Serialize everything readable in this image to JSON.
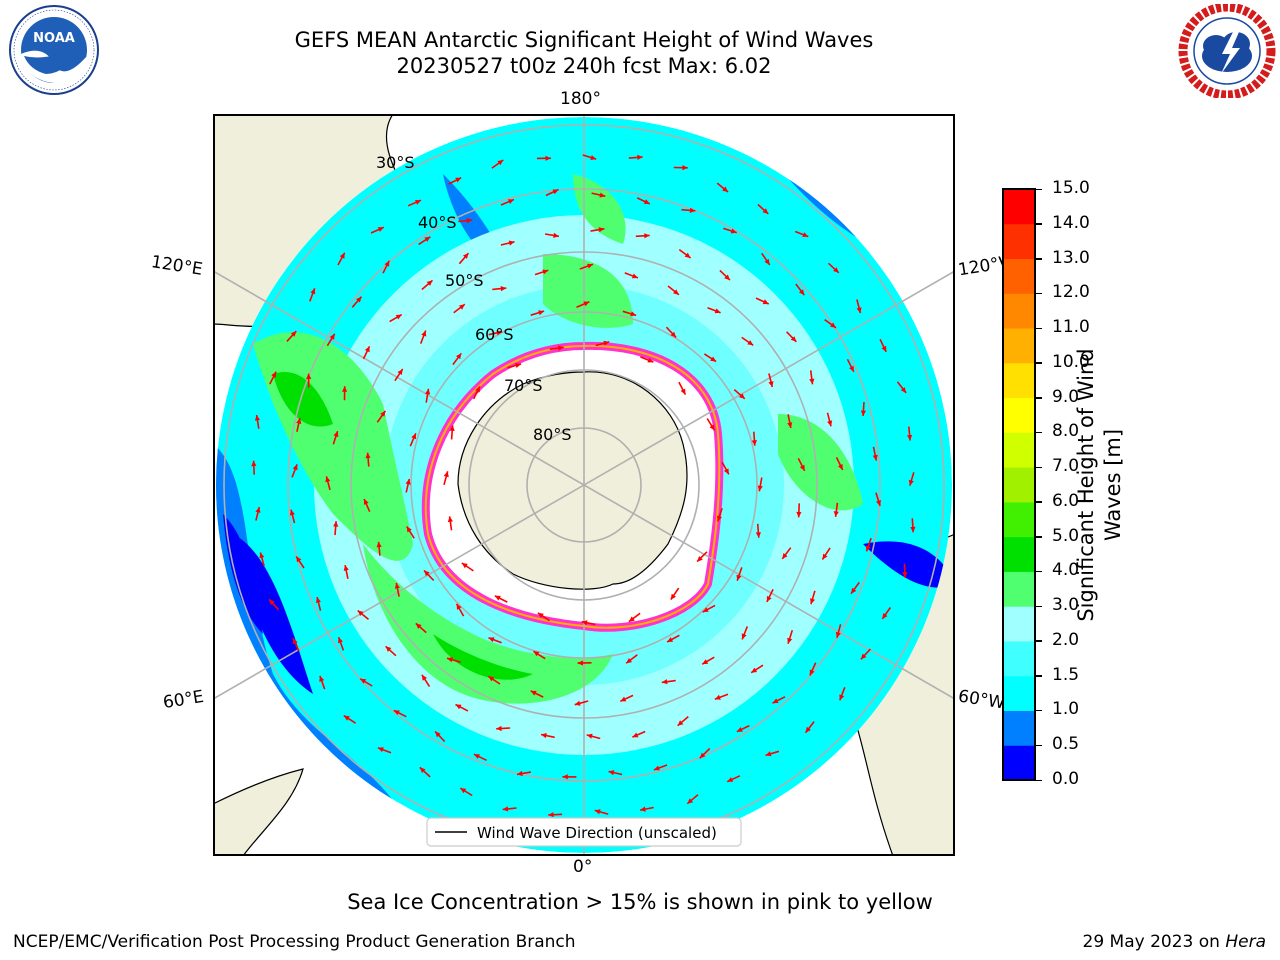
{
  "header": {
    "title_line1": "GEFS MEAN Antarctic Significant Height of Wind Waves",
    "title_line2": "20230527 t00z 240h fcst   Max: 6.02"
  },
  "logos": {
    "left": {
      "name": "NOAA",
      "ring_text": "NATIONAL OCEANIC AND ATMOSPHERIC ADMINISTRATION · U.S. DEPARTMENT OF COMMERCE"
    },
    "right": {
      "name": "NATIONAL WEATHER SERVICE"
    }
  },
  "map": {
    "longitude_labels": {
      "top": "180°",
      "bottom": "0°",
      "upper_left": "120°E",
      "upper_right": "120°W",
      "lower_left": "60°E",
      "lower_right": "60°W"
    },
    "latitude_labels": [
      "30°S",
      "40°S",
      "50°S",
      "60°S",
      "70°S",
      "80°S"
    ],
    "legend": {
      "label": "Wind Wave Direction (unscaled)",
      "line_color": "#000000",
      "arrow_color": "#ff0000"
    },
    "colors": {
      "land": "#efefdb",
      "ice_edge": "#ff33cc",
      "ice_fill": "#ffffff"
    }
  },
  "colorbar": {
    "label_line1": "Significant Height of Wind",
    "label_line2": "Waves [m]",
    "ticks": [
      "0.0",
      "0.5",
      "1.0",
      "1.5",
      "2.0",
      "3.0",
      "4.0",
      "5.0",
      "6.0",
      "7.0",
      "8.0",
      "9.0",
      "10.0",
      "11.0",
      "12.0",
      "13.0",
      "14.0",
      "15.0"
    ],
    "colors": [
      "#0000ff",
      "#0080ff",
      "#00ffff",
      "#40ffff",
      "#a0ffff",
      "#50ff70",
      "#00e000",
      "#40f000",
      "#a0f000",
      "#d0ff00",
      "#ffff00",
      "#ffe000",
      "#ffb000",
      "#ff8800",
      "#ff6000",
      "#ff3000",
      "#ff0000"
    ]
  },
  "footer": {
    "note": "Sea Ice Concentration > 15% is shown in pink to yellow",
    "left": "NCEP/EMC/Verification Post Processing Product Generation Branch",
    "right_prefix": "29 May 2023 on ",
    "right_machine": "Hera"
  }
}
